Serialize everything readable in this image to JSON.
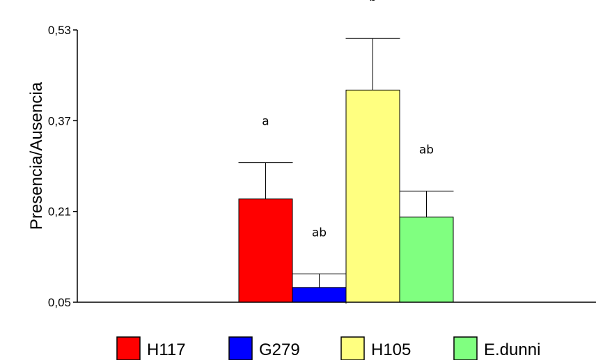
{
  "chart_data": {
    "type": "bar",
    "ylabel": "Presencia/Ausencia",
    "ylim": [
      0.05,
      0.53
    ],
    "yticks": [
      "0,05",
      "0,21",
      "0,37",
      "0,53"
    ],
    "ytick_values": [
      0.05,
      0.21,
      0.37,
      0.53
    ],
    "grid": false,
    "legend_position": "bottom",
    "series": [
      {
        "name": "H117",
        "value": 0.232,
        "error": 0.064,
        "sig": "a",
        "color": "#ff0000"
      },
      {
        "name": "G279",
        "value": 0.076,
        "error": 0.024,
        "sig": "ab",
        "color": "#0000ff"
      },
      {
        "name": "H105",
        "value": 0.424,
        "error": 0.091,
        "sig": "b",
        "color": "#ffff80"
      },
      {
        "name": "E.dunni",
        "value": 0.2,
        "error": 0.046,
        "sig": "ab",
        "color": "#80ff80"
      }
    ]
  }
}
